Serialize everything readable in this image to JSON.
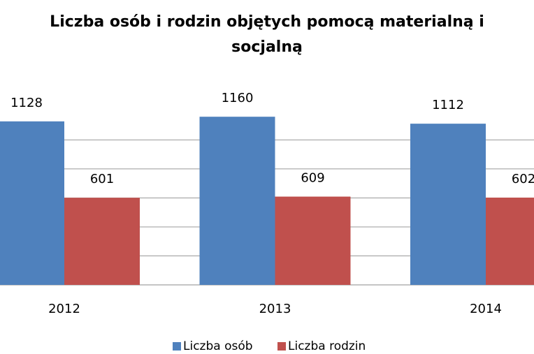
{
  "chart_data": {
    "type": "bar",
    "title": "Liczba osób i rodzin objętych pomocą materialną i socjalną",
    "categories": [
      "2012",
      "2013",
      "2014"
    ],
    "series": [
      {
        "name": "Liczba osób",
        "color": "#4f81bd",
        "values": [
          1128,
          1160,
          1112
        ]
      },
      {
        "name": "Liczba rodzin",
        "color": "#c0504d",
        "values": [
          601,
          609,
          602
        ]
      }
    ],
    "ylim": [
      0,
      1200
    ],
    "yticks": [
      0,
      200,
      400,
      600,
      800,
      1000
    ],
    "grid": true,
    "legend": "bottom"
  }
}
